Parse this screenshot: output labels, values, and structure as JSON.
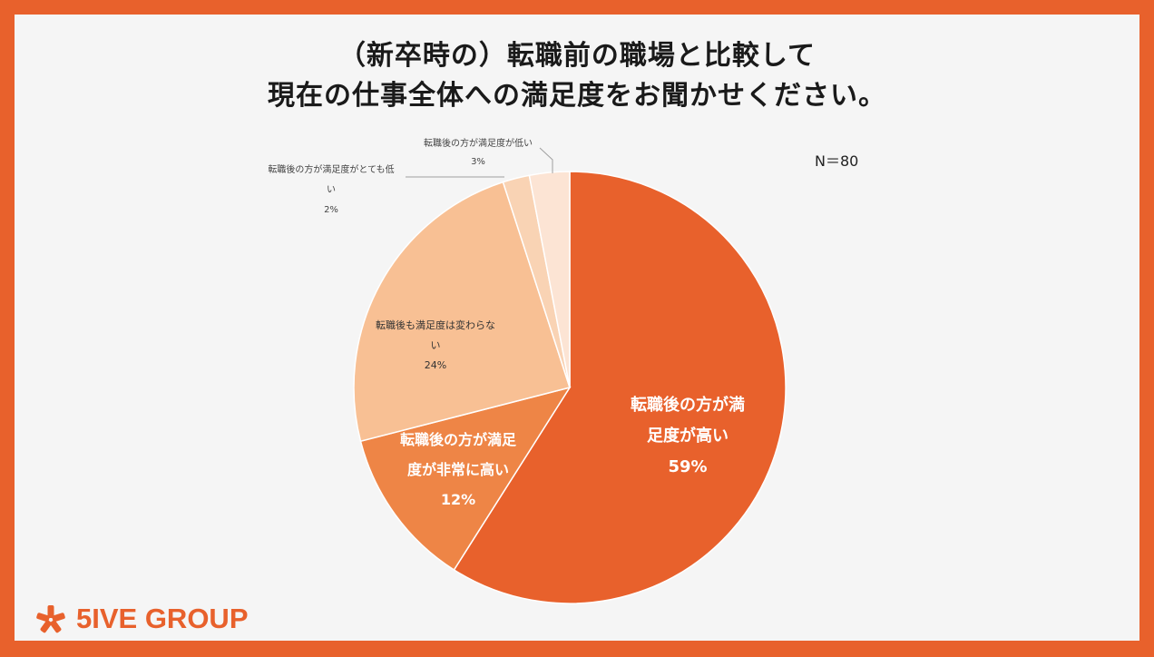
{
  "title": {
    "line1": "（新卒時の）転職前の職場と比較して",
    "line2": "現在の仕事全体への満足度をお聞かせください。"
  },
  "sample_size": "N＝80",
  "brand": {
    "name": "5IVE GROUP",
    "logo_icon": "asterisk-icon",
    "accent": "#E8612C"
  },
  "chart_data": {
    "type": "pie",
    "title": "（新卒時の）転職前の職場と比較して 現在の仕事全体への満足度をお聞かせください。",
    "start_angle_deg": 0,
    "direction": "clockwise",
    "slices": [
      {
        "label": "転職後の方が満足度が高い",
        "value": 59,
        "display": "59%",
        "color": "#E8612C"
      },
      {
        "label": "転職後の方が満足度が非常に高い",
        "value": 12,
        "display": "12%",
        "color": "#EE8546"
      },
      {
        "label": "転職後も満足度は変わらない",
        "value": 24,
        "display": "24%",
        "color": "#F8C094"
      },
      {
        "label": "転職後の方が満足度がとても低い",
        "value": 2,
        "display": "2%",
        "color": "#F9D3B4"
      },
      {
        "label": "転職後の方が満足度が低い",
        "value": 3,
        "display": "3%",
        "color": "#FCE4D4"
      }
    ]
  }
}
